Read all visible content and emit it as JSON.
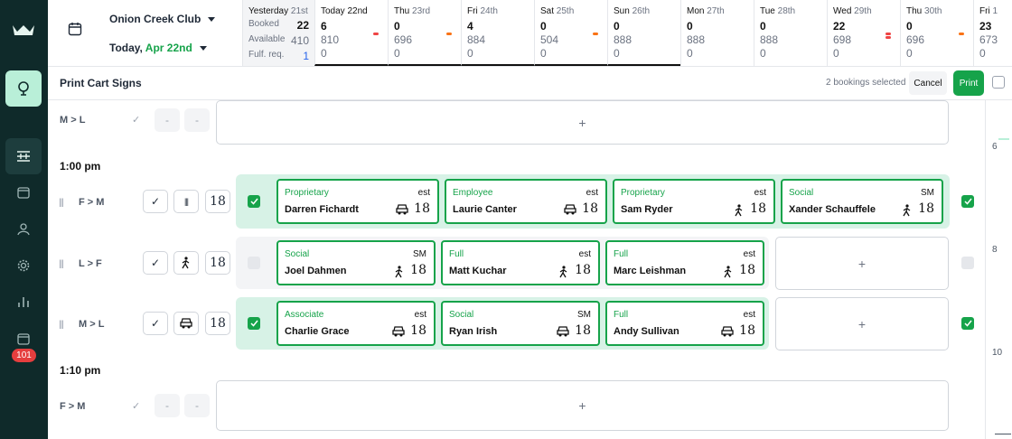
{
  "header": {
    "club": "Onion Creek Club",
    "today_label": "Today,",
    "today_date": "Apr 22nd"
  },
  "days": [
    {
      "name": "Yesterday",
      "num": "21st",
      "rows": [
        {
          "label": "Booked",
          "value": "22"
        },
        {
          "label": "Available",
          "value": "410"
        },
        {
          "label": "Fulf. req.",
          "value": "1"
        }
      ]
    },
    {
      "name": "Today",
      "num": "22nd",
      "v": [
        "6",
        "810",
        "0"
      ]
    },
    {
      "name": "Thu",
      "num": "23rd",
      "v": [
        "0",
        "696",
        "0"
      ]
    },
    {
      "name": "Fri",
      "num": "24th",
      "v": [
        "4",
        "884",
        "0"
      ]
    },
    {
      "name": "Sat",
      "num": "25th",
      "v": [
        "0",
        "504",
        "0"
      ]
    },
    {
      "name": "Sun",
      "num": "26th",
      "v": [
        "0",
        "888",
        "0"
      ]
    },
    {
      "name": "Mon",
      "num": "27th",
      "v": [
        "0",
        "888",
        "0"
      ]
    },
    {
      "name": "Tue",
      "num": "28th",
      "v": [
        "0",
        "888",
        "0"
      ]
    },
    {
      "name": "Wed",
      "num": "29th",
      "v": [
        "22",
        "698",
        "0"
      ]
    },
    {
      "name": "Thu",
      "num": "30th",
      "v": [
        "0",
        "696",
        "0"
      ]
    },
    {
      "name": "Fri",
      "num": "1",
      "v": [
        "23",
        "673",
        "0"
      ]
    }
  ],
  "actionbar": {
    "title": "Print Cart Signs",
    "selected": "2 bookings selected",
    "cancel": "Cancel",
    "print": "Print"
  },
  "sidebar": {
    "badge": "101"
  },
  "content": {
    "first_row": {
      "label": "M > L",
      "dash1": "-",
      "dash2": "-",
      "add": "+"
    },
    "time1": "1:00 pm",
    "rows": [
      {
        "label": "F > M",
        "holes": "18",
        "cards": [
          {
            "type": "Proprietary",
            "tag": "est",
            "name": "Darren Fichardt",
            "holes": "18",
            "mode": "cart"
          },
          {
            "type": "Employee",
            "tag": "est",
            "name": "Laurie Canter",
            "holes": "18",
            "mode": "cart"
          },
          {
            "type": "Proprietary",
            "tag": "est",
            "name": "Sam Ryder",
            "holes": "18",
            "mode": "walk"
          },
          {
            "type": "Social",
            "tag": "SM",
            "name": "Xander Schauffele",
            "holes": "18",
            "mode": "walk"
          }
        ]
      },
      {
        "label": "L > F",
        "holes": "18",
        "cards": [
          {
            "type": "Social",
            "tag": "SM",
            "name": "Joel Dahmen",
            "holes": "18",
            "mode": "walk"
          },
          {
            "type": "Full",
            "tag": "est",
            "name": "Matt Kuchar",
            "holes": "18",
            "mode": "walk"
          },
          {
            "type": "Full",
            "tag": "est",
            "name": "Marc Leishman",
            "holes": "18",
            "mode": "walk"
          }
        ],
        "add": "+"
      },
      {
        "label": "M > L",
        "holes": "18",
        "cards": [
          {
            "type": "Associate",
            "tag": "est",
            "name": "Charlie Grace",
            "holes": "18",
            "mode": "cart"
          },
          {
            "type": "Social",
            "tag": "SM",
            "name": "Ryan Irish",
            "holes": "18",
            "mode": "cart"
          },
          {
            "type": "Full",
            "tag": "est",
            "name": "Andy Sullivan",
            "holes": "18",
            "mode": "cart"
          }
        ],
        "add": "+"
      }
    ],
    "time2": "1:10 pm",
    "last_row": {
      "label": "F > M",
      "dash1": "-",
      "dash2": "-",
      "add": "+"
    }
  },
  "scroller": {
    "n1": "6",
    "n2": "8",
    "n3": "10"
  }
}
